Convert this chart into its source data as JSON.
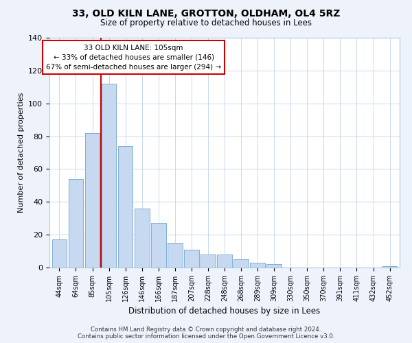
{
  "title": "33, OLD KILN LANE, GROTTON, OLDHAM, OL4 5RZ",
  "subtitle": "Size of property relative to detached houses in Lees",
  "xlabel": "Distribution of detached houses by size in Lees",
  "ylabel": "Number of detached properties",
  "bar_labels": [
    "44sqm",
    "64sqm",
    "85sqm",
    "105sqm",
    "126sqm",
    "146sqm",
    "166sqm",
    "187sqm",
    "207sqm",
    "228sqm",
    "248sqm",
    "268sqm",
    "289sqm",
    "309sqm",
    "330sqm",
    "350sqm",
    "370sqm",
    "391sqm",
    "411sqm",
    "432sqm",
    "452sqm"
  ],
  "bar_values": [
    17,
    54,
    82,
    112,
    74,
    36,
    27,
    15,
    11,
    8,
    8,
    5,
    3,
    2,
    0,
    0,
    0,
    0,
    0,
    0,
    1
  ],
  "bar_color": "#c6d9f0",
  "bar_edge_color": "#7fafd4",
  "vline_color": "#cc0000",
  "annotation_title": "33 OLD KILN LANE: 105sqm",
  "annotation_line1": "← 33% of detached houses are smaller (146)",
  "annotation_line2": "67% of semi-detached houses are larger (294) →",
  "annotation_box_color": "#ffffff",
  "annotation_box_edge": "#cc0000",
  "ylim": [
    0,
    140
  ],
  "yticks": [
    0,
    20,
    40,
    60,
    80,
    100,
    120,
    140
  ],
  "footer1": "Contains HM Land Registry data © Crown copyright and database right 2024.",
  "footer2": "Contains public sector information licensed under the Open Government Licence v3.0.",
  "bg_color": "#eef3fb",
  "plot_bg_color": "#ffffff",
  "grid_color": "#c8d8ee"
}
